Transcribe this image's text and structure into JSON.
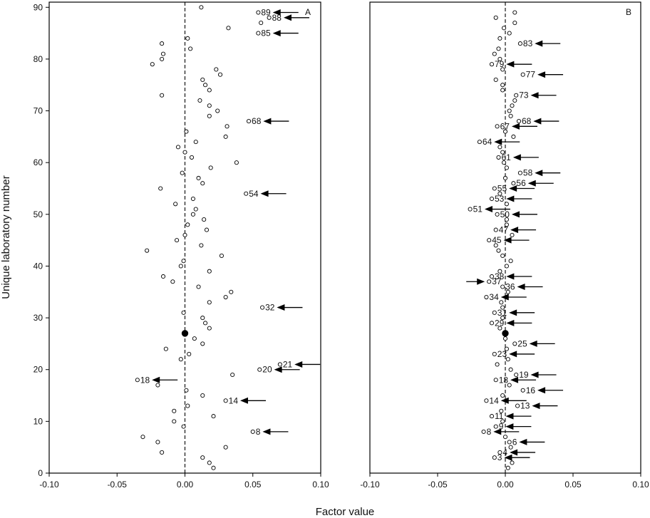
{
  "chart_data": [
    {
      "type": "scatter",
      "panel_label": "A",
      "xlabel": "Factor value",
      "ylabel": "Unique laboratory number",
      "xlim": [
        -0.1,
        0.1
      ],
      "ylim": [
        0,
        91
      ],
      "x_ticks": [
        "-0.10",
        "-0.05",
        "0.00",
        "0.05",
        "0.10"
      ],
      "y_ticks": [
        "0",
        "10",
        "20",
        "30",
        "40",
        "50",
        "60",
        "70",
        "80",
        "90"
      ],
      "reference_line": {
        "x": 0.0,
        "style": "dashed"
      },
      "highlighted_point": {
        "lab": 27,
        "factor": 0.0
      },
      "points": [
        {
          "lab": 1,
          "factor": 0.021
        },
        {
          "lab": 2,
          "factor": 0.018
        },
        {
          "lab": 3,
          "factor": 0.013
        },
        {
          "lab": 4,
          "factor": -0.017
        },
        {
          "lab": 5,
          "factor": 0.03
        },
        {
          "lab": 6,
          "factor": -0.02
        },
        {
          "lab": 7,
          "factor": -0.031
        },
        {
          "lab": 8,
          "factor": 0.05
        },
        {
          "lab": 9,
          "factor": -0.001
        },
        {
          "lab": 10,
          "factor": -0.008
        },
        {
          "lab": 11,
          "factor": 0.021
        },
        {
          "lab": 12,
          "factor": -0.008
        },
        {
          "lab": 13,
          "factor": 0.002
        },
        {
          "lab": 14,
          "factor": 0.03
        },
        {
          "lab": 15,
          "factor": 0.013
        },
        {
          "lab": 16,
          "factor": 0.001
        },
        {
          "lab": 17,
          "factor": -0.02
        },
        {
          "lab": 18,
          "factor": -0.035
        },
        {
          "lab": 19,
          "factor": 0.035
        },
        {
          "lab": 20,
          "factor": 0.055
        },
        {
          "lab": 21,
          "factor": 0.07
        },
        {
          "lab": 22,
          "factor": -0.003
        },
        {
          "lab": 23,
          "factor": 0.003
        },
        {
          "lab": 24,
          "factor": -0.014
        },
        {
          "lab": 25,
          "factor": 0.013
        },
        {
          "lab": 26,
          "factor": 0.007
        },
        {
          "lab": 28,
          "factor": 0.018
        },
        {
          "lab": 29,
          "factor": 0.015
        },
        {
          "lab": 30,
          "factor": 0.013
        },
        {
          "lab": 31,
          "factor": -0.001
        },
        {
          "lab": 32,
          "factor": 0.057
        },
        {
          "lab": 33,
          "factor": 0.018
        },
        {
          "lab": 34,
          "factor": 0.03
        },
        {
          "lab": 35,
          "factor": 0.034
        },
        {
          "lab": 36,
          "factor": 0.01
        },
        {
          "lab": 37,
          "factor": -0.009
        },
        {
          "lab": 38,
          "factor": -0.016
        },
        {
          "lab": 39,
          "factor": 0.018
        },
        {
          "lab": 40,
          "factor": -0.003
        },
        {
          "lab": 41,
          "factor": -0.001
        },
        {
          "lab": 42,
          "factor": 0.027
        },
        {
          "lab": 43,
          "factor": -0.028
        },
        {
          "lab": 44,
          "factor": 0.012
        },
        {
          "lab": 45,
          "factor": -0.006
        },
        {
          "lab": 46,
          "factor": 0.0
        },
        {
          "lab": 47,
          "factor": 0.016
        },
        {
          "lab": 48,
          "factor": 0.002
        },
        {
          "lab": 49,
          "factor": 0.014
        },
        {
          "lab": 50,
          "factor": 0.006
        },
        {
          "lab": 51,
          "factor": 0.008
        },
        {
          "lab": 52,
          "factor": -0.007
        },
        {
          "lab": 53,
          "factor": 0.006
        },
        {
          "lab": 54,
          "factor": 0.045
        },
        {
          "lab": 55,
          "factor": -0.018
        },
        {
          "lab": 56,
          "factor": 0.013
        },
        {
          "lab": 57,
          "factor": 0.01
        },
        {
          "lab": 58,
          "factor": -0.002
        },
        {
          "lab": 59,
          "factor": 0.019
        },
        {
          "lab": 60,
          "factor": 0.038
        },
        {
          "lab": 61,
          "factor": 0.005
        },
        {
          "lab": 62,
          "factor": 0.0
        },
        {
          "lab": 63,
          "factor": -0.005
        },
        {
          "lab": 64,
          "factor": 0.008
        },
        {
          "lab": 65,
          "factor": 0.03
        },
        {
          "lab": 66,
          "factor": 0.001
        },
        {
          "lab": 67,
          "factor": 0.031
        },
        {
          "lab": 68,
          "factor": 0.047
        },
        {
          "lab": 69,
          "factor": 0.018
        },
        {
          "lab": 70,
          "factor": 0.024
        },
        {
          "lab": 71,
          "factor": 0.018
        },
        {
          "lab": 72,
          "factor": 0.011
        },
        {
          "lab": 73,
          "factor": -0.017
        },
        {
          "lab": 74,
          "factor": 0.018
        },
        {
          "lab": 75,
          "factor": 0.015
        },
        {
          "lab": 76,
          "factor": 0.013
        },
        {
          "lab": 77,
          "factor": 0.026
        },
        {
          "lab": 78,
          "factor": 0.023
        },
        {
          "lab": 79,
          "factor": -0.024
        },
        {
          "lab": 80,
          "factor": -0.017
        },
        {
          "lab": 81,
          "factor": -0.016
        },
        {
          "lab": 82,
          "factor": 0.004
        },
        {
          "lab": 83,
          "factor": -0.017
        },
        {
          "lab": 84,
          "factor": 0.002
        },
        {
          "lab": 85,
          "factor": 0.054
        },
        {
          "lab": 86,
          "factor": 0.032
        },
        {
          "lab": 87,
          "factor": 0.056
        },
        {
          "lab": 88,
          "factor": 0.062
        },
        {
          "lab": 89,
          "factor": 0.054
        },
        {
          "lab": 90,
          "factor": 0.012
        }
      ],
      "flagged": [
        {
          "label": "89",
          "lab": 89,
          "factor": 0.054,
          "arrow": "left"
        },
        {
          "label": "88",
          "lab": 88,
          "factor": 0.062,
          "arrow": "left"
        },
        {
          "label": "85",
          "lab": 85,
          "factor": 0.054,
          "arrow": "left"
        },
        {
          "label": "68",
          "lab": 68,
          "factor": 0.047,
          "arrow": "left"
        },
        {
          "label": "54",
          "lab": 54,
          "factor": 0.045,
          "arrow": "left"
        },
        {
          "label": "32",
          "lab": 32,
          "factor": 0.057,
          "arrow": "left"
        },
        {
          "label": "21",
          "lab": 21,
          "factor": 0.07,
          "arrow": "left"
        },
        {
          "label": "20",
          "lab": 20,
          "factor": 0.055,
          "arrow": "left"
        },
        {
          "label": "18",
          "lab": 18,
          "factor": -0.035,
          "arrow": "left"
        },
        {
          "label": "14",
          "lab": 14,
          "factor": 0.03,
          "arrow": "left"
        },
        {
          "label": "8",
          "lab": 8,
          "factor": 0.05,
          "arrow": "left"
        }
      ]
    },
    {
      "type": "scatter",
      "panel_label": "B",
      "xlabel": "Factor value",
      "ylabel": "",
      "xlim": [
        -0.1,
        0.1
      ],
      "ylim": [
        0,
        91
      ],
      "x_ticks": [
        "-0.10",
        "-0.05",
        "0.00",
        "0.05",
        "0.10"
      ],
      "reference_line": {
        "x": 0.0,
        "style": "dashed"
      },
      "highlighted_point": {
        "lab": 27,
        "factor": 0.0
      },
      "points": [
        {
          "lab": 1,
          "factor": 0.002
        },
        {
          "lab": 2,
          "factor": 0.005
        },
        {
          "lab": 3,
          "factor": -0.008
        },
        {
          "lab": 4,
          "factor": -0.004
        },
        {
          "lab": 5,
          "factor": 0.004
        },
        {
          "lab": 6,
          "factor": 0.003
        },
        {
          "lab": 7,
          "factor": 0.0
        },
        {
          "lab": 8,
          "factor": -0.016
        },
        {
          "lab": 9,
          "factor": -0.007
        },
        {
          "lab": 10,
          "factor": -0.002
        },
        {
          "lab": 11,
          "factor": -0.01
        },
        {
          "lab": 12,
          "factor": -0.003
        },
        {
          "lab": 13,
          "factor": 0.009
        },
        {
          "lab": 14,
          "factor": -0.014
        },
        {
          "lab": 15,
          "factor": -0.002
        },
        {
          "lab": 16,
          "factor": 0.013
        },
        {
          "lab": 17,
          "factor": 0.003
        },
        {
          "lab": 18,
          "factor": -0.007
        },
        {
          "lab": 19,
          "factor": 0.008
        },
        {
          "lab": 20,
          "factor": 0.004
        },
        {
          "lab": 21,
          "factor": -0.006
        },
        {
          "lab": 22,
          "factor": 0.002
        },
        {
          "lab": 23,
          "factor": -0.008
        },
        {
          "lab": 24,
          "factor": 0.001
        },
        {
          "lab": 25,
          "factor": 0.007
        },
        {
          "lab": 26,
          "factor": 0.0
        },
        {
          "lab": 28,
          "factor": -0.004
        },
        {
          "lab": 29,
          "factor": -0.01
        },
        {
          "lab": 30,
          "factor": -0.002
        },
        {
          "lab": 31,
          "factor": -0.008
        },
        {
          "lab": 32,
          "factor": -0.002
        },
        {
          "lab": 33,
          "factor": -0.003
        },
        {
          "lab": 34,
          "factor": -0.014
        },
        {
          "lab": 35,
          "factor": 0.002
        },
        {
          "lab": 36,
          "factor": -0.002
        },
        {
          "lab": 37,
          "factor": -0.012
        },
        {
          "lab": 38,
          "factor": -0.01
        },
        {
          "lab": 39,
          "factor": -0.004
        },
        {
          "lab": 40,
          "factor": 0.001
        },
        {
          "lab": 41,
          "factor": 0.004
        },
        {
          "lab": 42,
          "factor": -0.002
        },
        {
          "lab": 43,
          "factor": -0.005
        },
        {
          "lab": 44,
          "factor": -0.007
        },
        {
          "lab": 45,
          "factor": -0.012
        },
        {
          "lab": 46,
          "factor": 0.005
        },
        {
          "lab": 47,
          "factor": -0.007
        },
        {
          "lab": 48,
          "factor": 0.001
        },
        {
          "lab": 49,
          "factor": 0.001
        },
        {
          "lab": 50,
          "factor": -0.006
        },
        {
          "lab": 51,
          "factor": -0.026
        },
        {
          "lab": 52,
          "factor": 0.001
        },
        {
          "lab": 53,
          "factor": -0.01
        },
        {
          "lab": 54,
          "factor": -0.004
        },
        {
          "lab": 55,
          "factor": -0.008
        },
        {
          "lab": 56,
          "factor": 0.006
        },
        {
          "lab": 57,
          "factor": 0.0
        },
        {
          "lab": 58,
          "factor": 0.011
        },
        {
          "lab": 59,
          "factor": 0.001
        },
        {
          "lab": 60,
          "factor": -0.001
        },
        {
          "lab": 61,
          "factor": -0.005
        },
        {
          "lab": 62,
          "factor": -0.002
        },
        {
          "lab": 63,
          "factor": -0.004
        },
        {
          "lab": 64,
          "factor": -0.019
        },
        {
          "lab": 65,
          "factor": 0.006
        },
        {
          "lab": 66,
          "factor": 0.0
        },
        {
          "lab": 67,
          "factor": -0.006
        },
        {
          "lab": 68,
          "factor": 0.01
        },
        {
          "lab": 69,
          "factor": 0.004
        },
        {
          "lab": 70,
          "factor": 0.003
        },
        {
          "lab": 71,
          "factor": 0.005
        },
        {
          "lab": 72,
          "factor": 0.007
        },
        {
          "lab": 73,
          "factor": 0.008
        },
        {
          "lab": 74,
          "factor": -0.002
        },
        {
          "lab": 75,
          "factor": -0.002
        },
        {
          "lab": 76,
          "factor": -0.007
        },
        {
          "lab": 77,
          "factor": 0.013
        },
        {
          "lab": 78,
          "factor": -0.002
        },
        {
          "lab": 79,
          "factor": -0.01
        },
        {
          "lab": 80,
          "factor": -0.004
        },
        {
          "lab": 81,
          "factor": -0.008
        },
        {
          "lab": 82,
          "factor": -0.005
        },
        {
          "lab": 83,
          "factor": 0.011
        },
        {
          "lab": 84,
          "factor": -0.004
        },
        {
          "lab": 85,
          "factor": 0.003
        },
        {
          "lab": 86,
          "factor": -0.001
        },
        {
          "lab": 87,
          "factor": 0.007
        },
        {
          "lab": 88,
          "factor": -0.007
        },
        {
          "lab": 89,
          "factor": 0.007
        }
      ],
      "flagged": [
        {
          "label": "83",
          "lab": 83,
          "factor": 0.011,
          "arrow": "left"
        },
        {
          "label": "79",
          "lab": 79,
          "factor": -0.01,
          "arrow": "left"
        },
        {
          "label": "77",
          "lab": 77,
          "factor": 0.013,
          "arrow": "left"
        },
        {
          "label": "73",
          "lab": 73,
          "factor": 0.008,
          "arrow": "left"
        },
        {
          "label": "68",
          "lab": 68,
          "factor": 0.01,
          "arrow": "left"
        },
        {
          "label": "67",
          "lab": 67,
          "factor": -0.006,
          "arrow": "left"
        },
        {
          "label": "64",
          "lab": 64,
          "factor": -0.019,
          "arrow": "left"
        },
        {
          "label": "61",
          "lab": 61,
          "factor": -0.005,
          "arrow": "left"
        },
        {
          "label": "58",
          "lab": 58,
          "factor": 0.011,
          "arrow": "left"
        },
        {
          "label": "56",
          "lab": 56,
          "factor": 0.006,
          "arrow": "left"
        },
        {
          "label": "55",
          "lab": 55,
          "factor": -0.008,
          "arrow": "left"
        },
        {
          "label": "53",
          "lab": 53,
          "factor": -0.01,
          "arrow": "left"
        },
        {
          "label": "51",
          "lab": 51,
          "factor": -0.026,
          "arrow": "left"
        },
        {
          "label": "50",
          "lab": 50,
          "factor": -0.006,
          "arrow": "left"
        },
        {
          "label": "47",
          "lab": 47,
          "factor": -0.007,
          "arrow": "left"
        },
        {
          "label": "45",
          "lab": 45,
          "factor": -0.012,
          "arrow": "left"
        },
        {
          "label": "38",
          "lab": 38,
          "factor": -0.01,
          "arrow": "left"
        },
        {
          "label": "37",
          "lab": 37,
          "factor": -0.012,
          "arrow": "right"
        },
        {
          "label": "36",
          "lab": 36,
          "factor": -0.002,
          "arrow": "left"
        },
        {
          "label": "34",
          "lab": 34,
          "factor": -0.014,
          "arrow": "left"
        },
        {
          "label": "31",
          "lab": 31,
          "factor": -0.008,
          "arrow": "left"
        },
        {
          "label": "29",
          "lab": 29,
          "factor": -0.01,
          "arrow": "left"
        },
        {
          "label": "25",
          "lab": 25,
          "factor": 0.007,
          "arrow": "left"
        },
        {
          "label": "23",
          "lab": 23,
          "factor": -0.008,
          "arrow": "left"
        },
        {
          "label": "19",
          "lab": 19,
          "factor": 0.008,
          "arrow": "left"
        },
        {
          "label": "18",
          "lab": 18,
          "factor": -0.007,
          "arrow": "left"
        },
        {
          "label": "16",
          "lab": 16,
          "factor": 0.013,
          "arrow": "left"
        },
        {
          "label": "14",
          "lab": 14,
          "factor": -0.014,
          "arrow": "left"
        },
        {
          "label": "13",
          "lab": 13,
          "factor": 0.009,
          "arrow": "left"
        },
        {
          "label": "11",
          "lab": 11,
          "factor": -0.01,
          "arrow": "left"
        },
        {
          "label": "9",
          "lab": 9,
          "factor": -0.007,
          "arrow": "left"
        },
        {
          "label": "8",
          "lab": 8,
          "factor": -0.016,
          "arrow": "left"
        },
        {
          "label": "6",
          "lab": 6,
          "factor": 0.003,
          "arrow": "left"
        },
        {
          "label": "4",
          "lab": 4,
          "factor": -0.004,
          "arrow": "left"
        },
        {
          "label": "3",
          "lab": 3,
          "factor": -0.008,
          "arrow": "left"
        }
      ]
    }
  ],
  "colors": {
    "ink": "#000000",
    "background": "#ffffff"
  }
}
